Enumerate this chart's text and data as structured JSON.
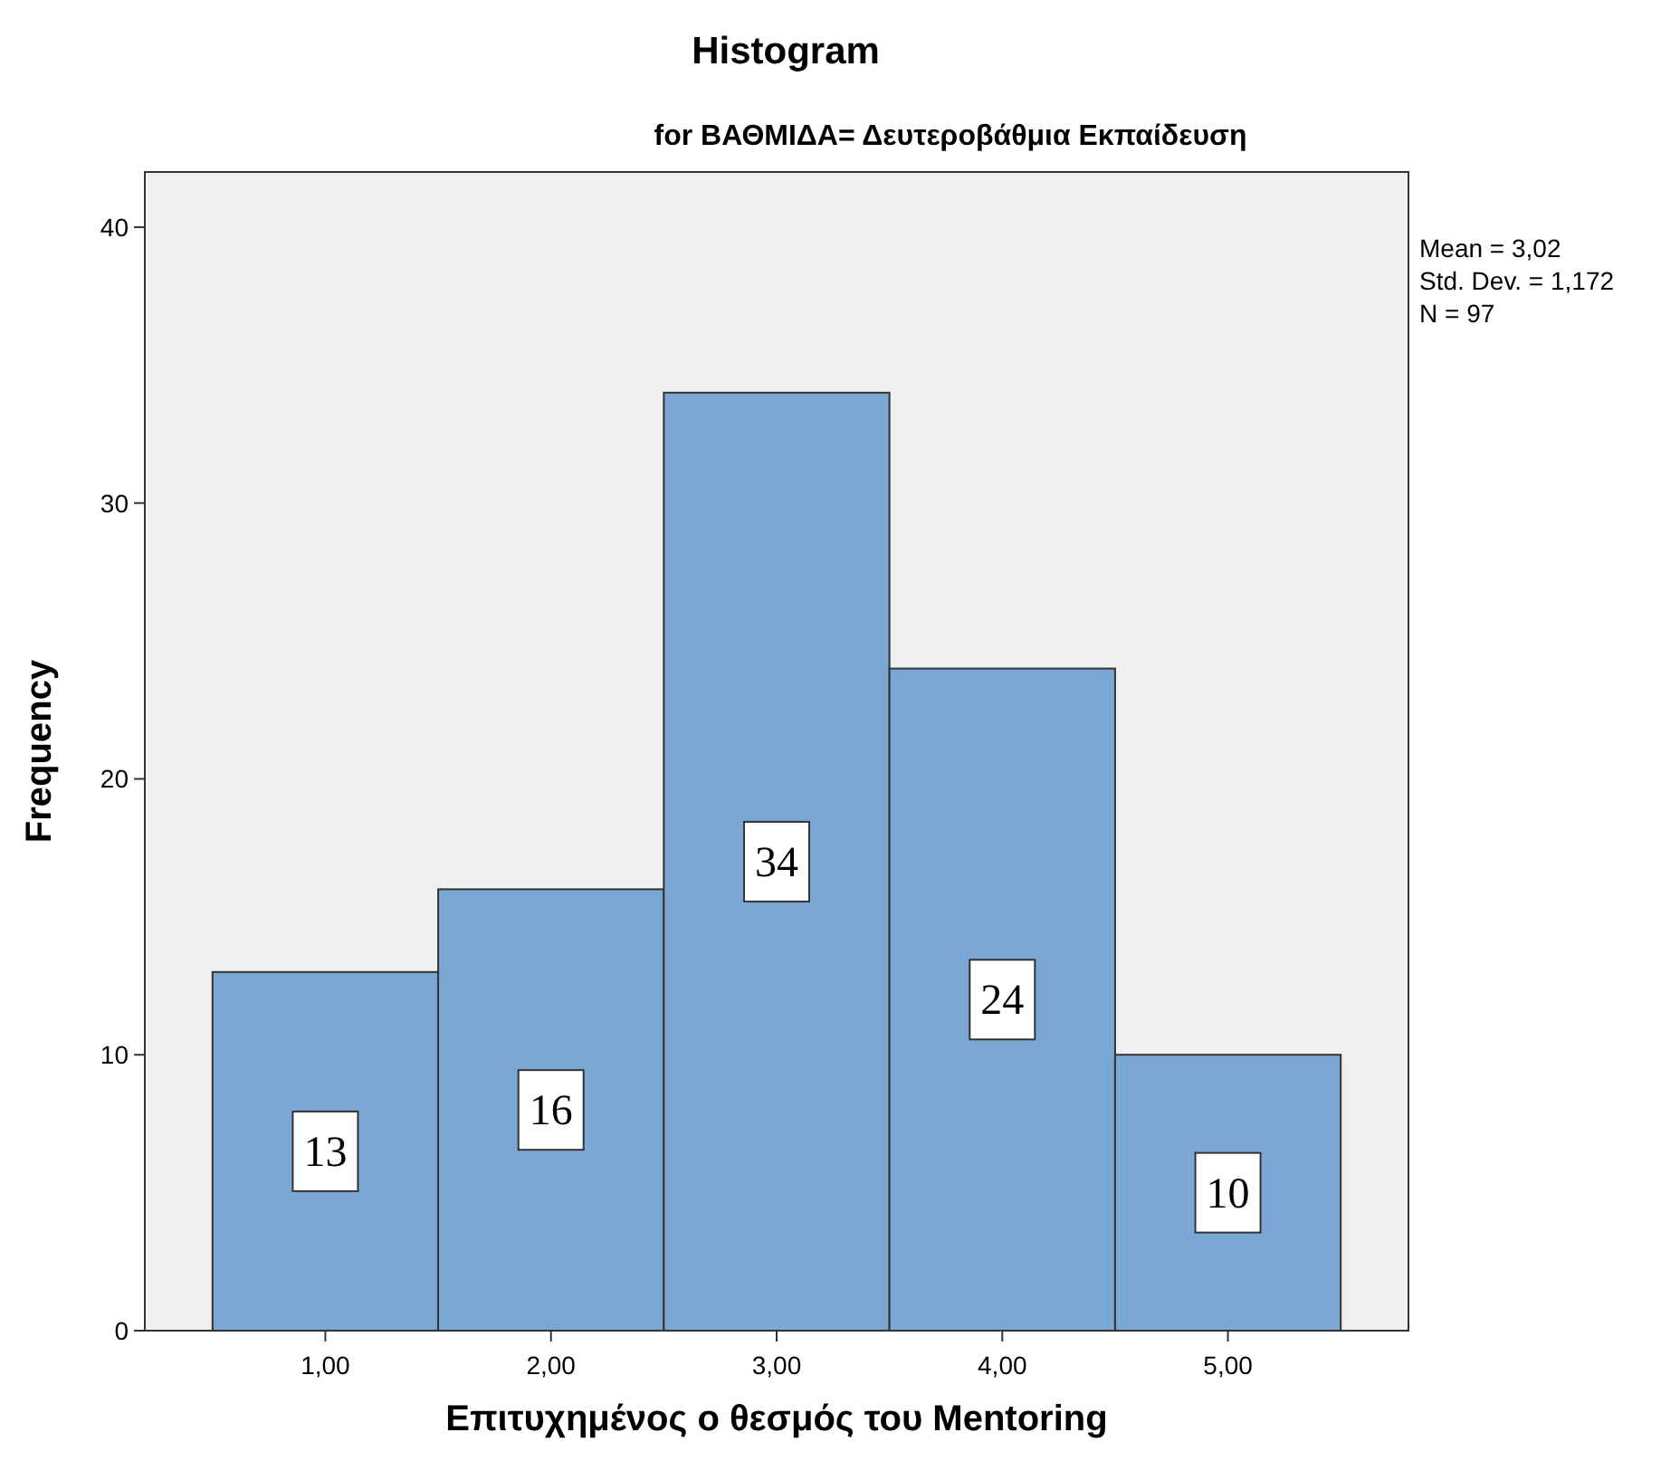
{
  "chart_data": {
    "type": "histogram",
    "title": "Histogram",
    "subtitle": "for ΒΑΘΜΙΔΑ= Δευτεροβάθμια Εκπαίδευση",
    "xlabel": "Επιτυχημένος ο θεσμός του Mentoring",
    "ylabel": "Frequency",
    "bins": [
      0.5,
      1.5,
      2.5,
      3.5,
      4.5,
      5.5
    ],
    "values": [
      13,
      16,
      34,
      24,
      10
    ],
    "color": "#7ba7d5",
    "data_labels": true,
    "xlim": [
      0.2,
      5.8
    ],
    "xticks": [
      {
        "value": 1,
        "label": "1,00"
      },
      {
        "value": 2,
        "label": "2,00"
      },
      {
        "value": 3,
        "label": "3,00"
      },
      {
        "value": 4,
        "label": "4,00"
      },
      {
        "value": 5,
        "label": "5,00"
      }
    ],
    "ylim": [
      0,
      42
    ],
    "yticks": [
      0,
      10,
      20,
      30,
      40
    ],
    "grid": false,
    "annotations": [
      "Mean = 3,02",
      "Std. Dev. = 1,172",
      "N = 97"
    ]
  }
}
